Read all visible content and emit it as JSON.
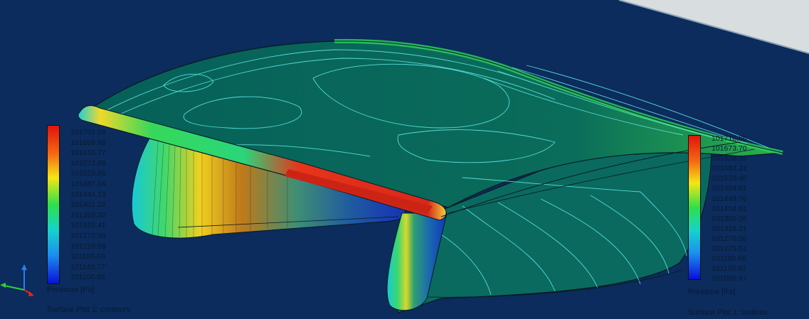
{
  "legend_left": {
    "values": [
      "101701.59",
      "101658.68",
      "101615.77",
      "101572.86",
      "101529.95",
      "101487.04",
      "101444.13",
      "101401.22",
      "101358.32",
      "101315.41",
      "101272.50",
      "101229.59",
      "101186.68",
      "101143.77",
      "101100.86"
    ],
    "quantity": "Pressure [Pa]",
    "plot_name": "Surface Plot 1: contours"
  },
  "legend_right": {
    "values": [
      "101718.85",
      "101673.70",
      "101628.55",
      "101584.31",
      "101539.46",
      "101494.61",
      "101449.76",
      "101404.91",
      "101360.06",
      "101315.21",
      "101270.36",
      "101225.51",
      "101180.66",
      "101135.81",
      "101090.97"
    ],
    "quantity": "Pressure [Pa]",
    "plot_name": "Surface Plot 1: isolines"
  },
  "colors": {
    "background": "#0b2c5c",
    "surface": "#066059",
    "isoline": "#57e6e6",
    "high_pressure": "#d92b10",
    "low_pressure": "#0a1cc8"
  },
  "icons": [
    "coordinate-triad-icon"
  ]
}
